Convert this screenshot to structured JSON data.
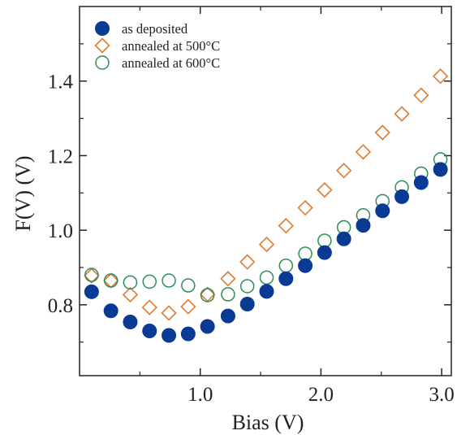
{
  "chart_data": {
    "type": "scatter",
    "xlabel": "Bias (V)",
    "ylabel": "F(V) (V)",
    "xlim": [
      0.0,
      3.08
    ],
    "ylim": [
      0.61,
      1.6
    ],
    "xticks": [
      1.0,
      2.0,
      3.0
    ],
    "xtick_labels": [
      "1.0",
      "2.0",
      "3.0"
    ],
    "xminor": [
      0.5,
      1.5,
      2.5
    ],
    "yticks": [
      0.8,
      1.0,
      1.2,
      1.4
    ],
    "ytick_labels": [
      "0.8",
      "1.0",
      "1.2",
      "1.4"
    ],
    "yminor": [
      0.7,
      0.9,
      1.1,
      1.3,
      1.5
    ],
    "legend_position": "top-left",
    "grid": false,
    "series": [
      {
        "name": "as deposited",
        "marker": "filled-circle",
        "color": "#0a3a94",
        "x": [
          0.1,
          0.26,
          0.42,
          0.58,
          0.74,
          0.9,
          1.06,
          1.23,
          1.39,
          1.55,
          1.71,
          1.87,
          2.03,
          2.19,
          2.35,
          2.51,
          2.67,
          2.83,
          2.99
        ],
        "y": [
          0.835,
          0.784,
          0.754,
          0.73,
          0.718,
          0.722,
          0.742,
          0.77,
          0.802,
          0.836,
          0.87,
          0.905,
          0.94,
          0.977,
          1.013,
          1.052,
          1.09,
          1.128,
          1.163
        ]
      },
      {
        "name": "annealed at 500°C",
        "marker": "open-diamond",
        "color": "#e07a2e",
        "x": [
          0.1,
          0.26,
          0.42,
          0.58,
          0.74,
          0.9,
          1.06,
          1.23,
          1.39,
          1.55,
          1.71,
          1.87,
          2.03,
          2.19,
          2.35,
          2.51,
          2.67,
          2.83,
          2.99
        ],
        "y": [
          0.878,
          0.865,
          0.827,
          0.793,
          0.778,
          0.795,
          0.828,
          0.87,
          0.915,
          0.962,
          1.012,
          1.06,
          1.108,
          1.16,
          1.21,
          1.262,
          1.312,
          1.362,
          1.413
        ]
      },
      {
        "name": "annealed at 600°C",
        "marker": "open-circle",
        "color": "#2e8b5a",
        "x": [
          0.1,
          0.26,
          0.42,
          0.58,
          0.74,
          0.9,
          1.06,
          1.23,
          1.39,
          1.55,
          1.71,
          1.87,
          2.03,
          2.19,
          2.35,
          2.51,
          2.67,
          2.83,
          2.99
        ],
        "y": [
          0.88,
          0.865,
          0.86,
          0.862,
          0.865,
          0.852,
          0.826,
          0.828,
          0.85,
          0.873,
          0.905,
          0.937,
          0.972,
          1.008,
          1.04,
          1.078,
          1.115,
          1.152,
          1.19
        ]
      }
    ]
  }
}
